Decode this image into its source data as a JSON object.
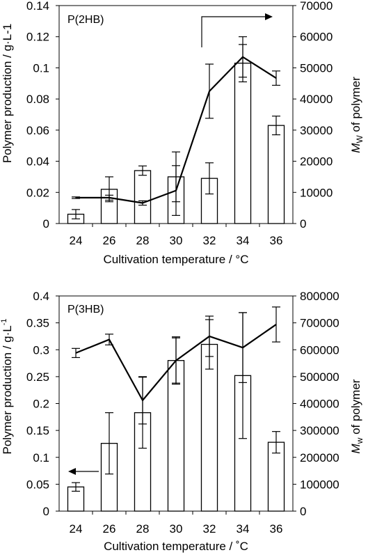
{
  "chart_data": [
    {
      "type": "bar",
      "panel_label": "P(2HB)",
      "categories": [
        "24",
        "26",
        "28",
        "30",
        "32",
        "34",
        "36"
      ],
      "xlabel": "Cultivation temperature / °C",
      "ylabel": "Polymer production / g·L-1",
      "y2label": "Mw of polymer",
      "y2label_main": "M",
      "y2label_sub": "W",
      "y2label_rest": " of polymer",
      "ylim": [
        0,
        0.14
      ],
      "y2lim": [
        0,
        70000
      ],
      "yticks": [
        "0",
        "0.02",
        "0.04",
        "0.06",
        "0.08",
        "0.1",
        "0.12",
        "0.14"
      ],
      "y2ticks": [
        "0",
        "10000",
        "20000",
        "30000",
        "40000",
        "50000",
        "60000",
        "70000"
      ],
      "series": [
        {
          "kind": "bar",
          "axis": "left",
          "values": [
            0.006,
            0.022,
            0.034,
            0.03,
            0.029,
            0.103,
            0.063
          ],
          "errors": [
            0.003,
            0.008,
            0.003,
            0.016,
            0.01,
            0.012,
            0.006
          ]
        },
        {
          "kind": "line",
          "axis": "right",
          "values": [
            8300,
            8300,
            6600,
            10600,
            42500,
            53500,
            46700
          ],
          "errors": [
            250,
            800,
            700,
            8000,
            8700,
            6500,
            2300
          ]
        }
      ],
      "arrow": "right"
    },
    {
      "type": "bar",
      "panel_label": "P(3HB)",
      "categories": [
        "24",
        "26",
        "28",
        "30",
        "32",
        "34",
        "36"
      ],
      "xlabel": "Cultivation temperature / ˚C",
      "ylabel": "Polymer production / g·L-1",
      "ylabel_main": "Polymer production / g·L",
      "ylabel_sup": "-1",
      "y2label": "Mw of polymer",
      "y2label_main": "M",
      "y2label_sub": "w",
      "y2label_rest": " of polymer",
      "ylim": [
        0,
        0.4
      ],
      "y2lim": [
        0,
        800000
      ],
      "yticks": [
        "0",
        "0.05",
        "0.1",
        "0.15",
        "0.2",
        "0.25",
        "0.3",
        "0.35",
        "0.4"
      ],
      "y2ticks": [
        "0",
        "100000",
        "200000",
        "300000",
        "400000",
        "500000",
        "600000",
        "700000",
        "800000"
      ],
      "series": [
        {
          "kind": "bar",
          "axis": "left",
          "values": [
            0.045,
            0.126,
            0.183,
            0.28,
            0.31,
            0.252,
            0.128
          ],
          "errors": [
            0.008,
            0.057,
            0.066,
            0.042,
            0.046,
            0.117,
            0.02
          ]
        },
        {
          "kind": "line",
          "axis": "right",
          "values": [
            588000,
            638000,
            412000,
            560000,
            650000,
            608000,
            694000
          ],
          "errors": [
            17000,
            20000,
            88000,
            88000,
            75000,
            130000,
            65000
          ]
        }
      ],
      "arrow": "left"
    }
  ]
}
